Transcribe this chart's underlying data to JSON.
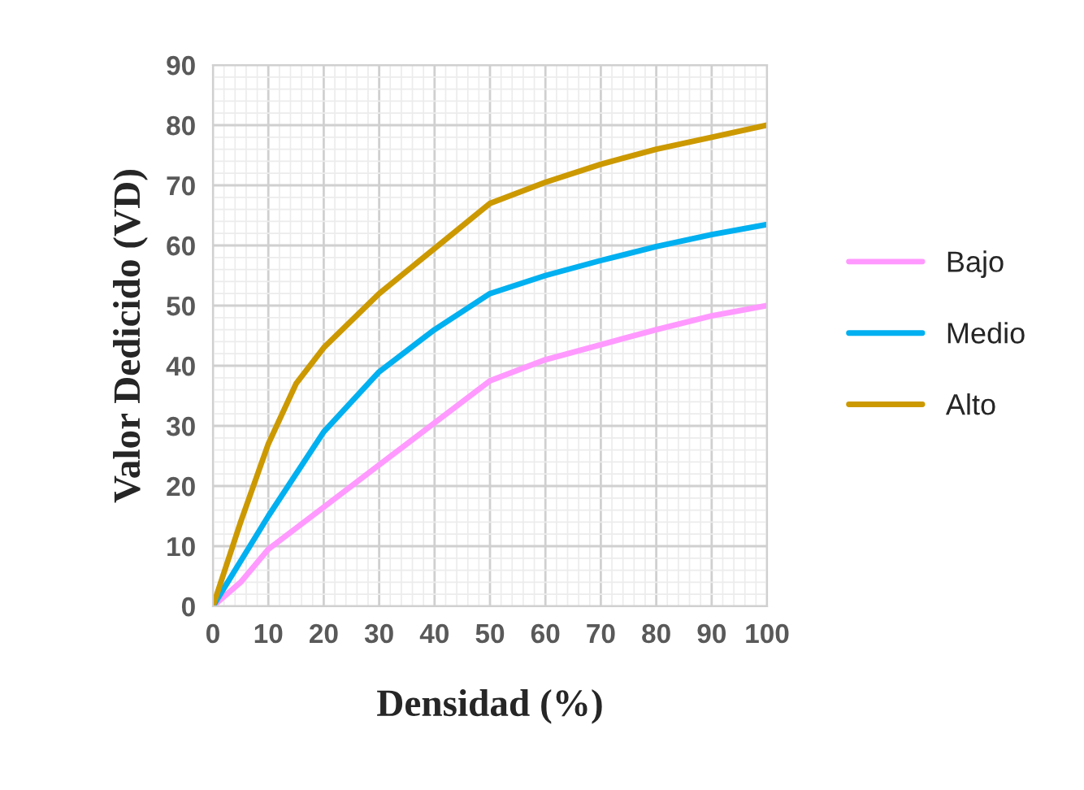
{
  "chart_data": {
    "type": "line",
    "xlabel": "Densidad (%)",
    "ylabel": "Valor Dedicido (VD)",
    "xlim": [
      0,
      100
    ],
    "ylim": [
      0,
      90
    ],
    "xticks": [
      0,
      10,
      20,
      30,
      40,
      50,
      60,
      70,
      80,
      90,
      100
    ],
    "yticks": [
      0,
      10,
      20,
      30,
      40,
      50,
      60,
      70,
      80,
      90
    ],
    "grid": true,
    "legend": "right",
    "marker": "none",
    "line_style": "solid",
    "series": [
      {
        "name": "Bajo",
        "color": "#ff99ff",
        "x": [
          0,
          5,
          10,
          20,
          30,
          40,
          50,
          60,
          70,
          80,
          90,
          100
        ],
        "values": [
          0,
          4,
          9.5,
          16.5,
          23.5,
          30.5,
          37.5,
          41,
          43.5,
          46,
          48.3,
          50
        ]
      },
      {
        "name": "Medio",
        "color": "#00b0f0",
        "x": [
          0,
          10,
          20,
          30,
          40,
          50,
          60,
          70,
          80,
          90,
          100
        ],
        "values": [
          0,
          15,
          29,
          39,
          46,
          52,
          55,
          57.5,
          59.8,
          61.8,
          63.5
        ]
      },
      {
        "name": "Alto",
        "color": "#cc9900",
        "x": [
          0,
          5,
          10,
          15,
          20,
          30,
          40,
          50,
          60,
          70,
          80,
          90,
          100
        ],
        "values": [
          0,
          14,
          27,
          37,
          43,
          52,
          59.5,
          67,
          70.5,
          73.5,
          76,
          78,
          80
        ]
      }
    ]
  }
}
